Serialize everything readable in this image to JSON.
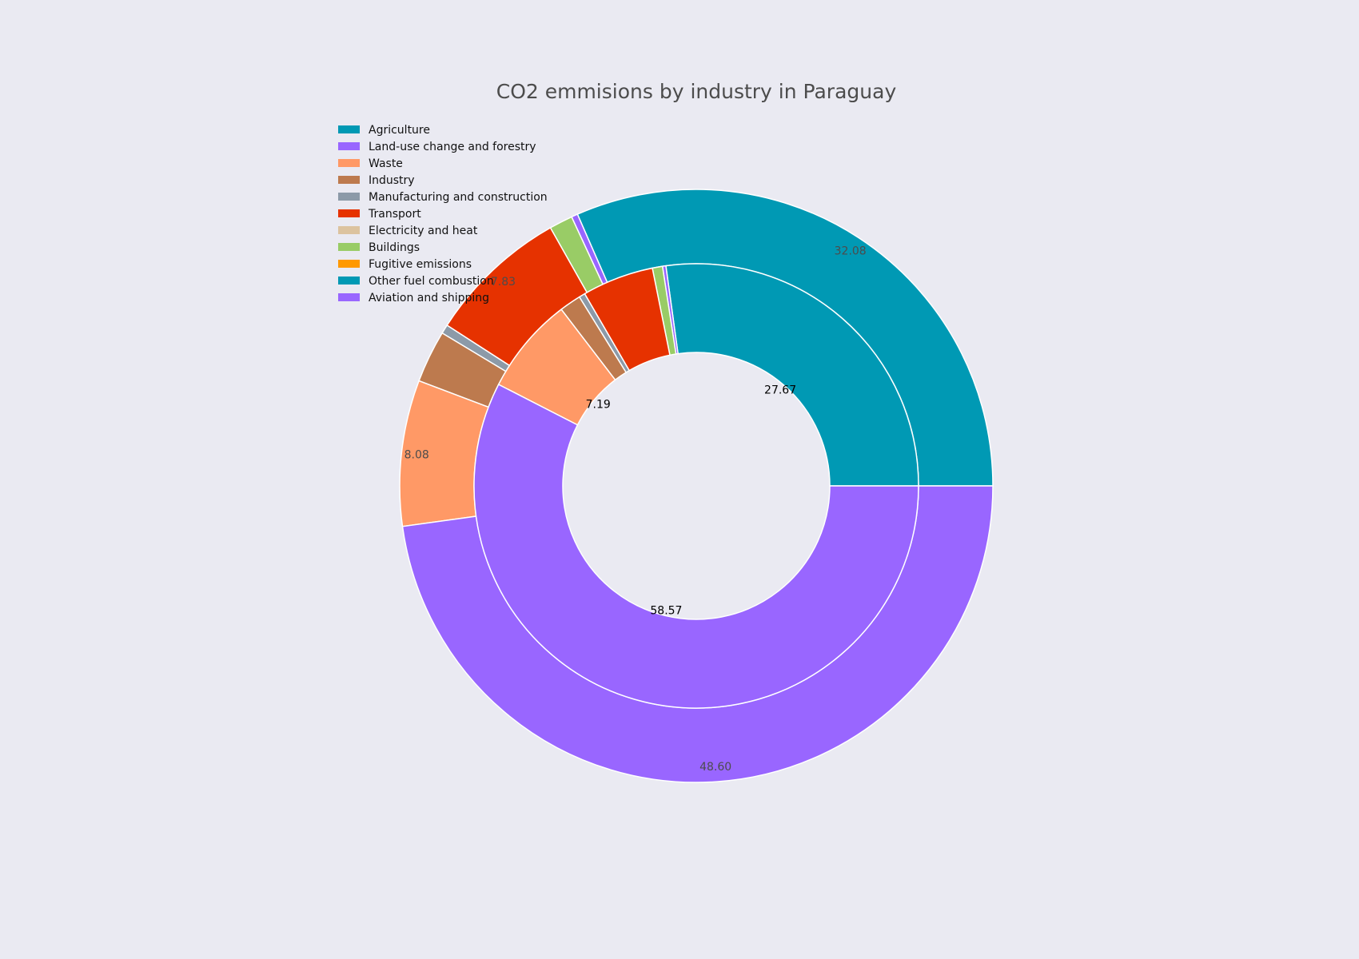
{
  "chart_data": {
    "type": "pie",
    "subtype": "nested-donut",
    "title": "CO2 emmisions by industry in Paraguay",
    "legend": {
      "placement": "top-left",
      "entries": [
        {
          "label": "Agriculture",
          "color": "#0099b4"
        },
        {
          "label": "Land-use change and forestry",
          "color": "#9966ff"
        },
        {
          "label": "Waste",
          "color": "#ff9966"
        },
        {
          "label": "Industry",
          "color": "#bd7a4e"
        },
        {
          "label": "Manufacturing and construction",
          "color": "#8c9aa8"
        },
        {
          "label": "Transport",
          "color": "#e63200"
        },
        {
          "label": "Electricity and heat",
          "color": "#dcc39f"
        },
        {
          "label": "Buildings",
          "color": "#99cc66"
        },
        {
          "label": "Fugitive emissions",
          "color": "#ff9900"
        },
        {
          "label": "Other fuel combustion",
          "color": "#0099b4"
        },
        {
          "label": "Aviation and shipping",
          "color": "#9966ff"
        }
      ]
    },
    "rings": [
      {
        "ring": "outer",
        "label_color": "#4c4c4c",
        "slices": [
          {
            "category": "Agriculture",
            "value": 32.08,
            "label": "32.08"
          },
          {
            "category": "Aviation and shipping",
            "value": 0.35,
            "label": ""
          },
          {
            "category": "Buildings",
            "value": 1.3,
            "label": ""
          },
          {
            "category": "Transport",
            "value": 7.83,
            "label": "7.83"
          },
          {
            "category": "Manufacturing and construction",
            "value": 0.5,
            "label": ""
          },
          {
            "category": "Industry",
            "value": 2.9,
            "label": ""
          },
          {
            "category": "Waste",
            "value": 8.08,
            "label": "8.08"
          },
          {
            "category": "Land-use change and forestry",
            "value": 48.6,
            "label": "48.60"
          }
        ]
      },
      {
        "ring": "inner",
        "label_color": "#000000",
        "slices": [
          {
            "category": "Agriculture",
            "value": 27.67,
            "label": "27.67"
          },
          {
            "category": "Aviation and shipping",
            "value": 0.25,
            "label": ""
          },
          {
            "category": "Buildings",
            "value": 0.75,
            "label": ""
          },
          {
            "category": "Transport",
            "value": 5.3,
            "label": ""
          },
          {
            "category": "Manufacturing and construction",
            "value": 0.45,
            "label": ""
          },
          {
            "category": "Industry",
            "value": 1.6,
            "label": ""
          },
          {
            "category": "Waste",
            "value": 7.19,
            "label": "7.19"
          },
          {
            "category": "Land-use change and forestry",
            "value": 58.57,
            "label": "58.57"
          }
        ]
      }
    ],
    "slice_border_color": "#ffffff",
    "background_color": "#eaeaf2"
  }
}
